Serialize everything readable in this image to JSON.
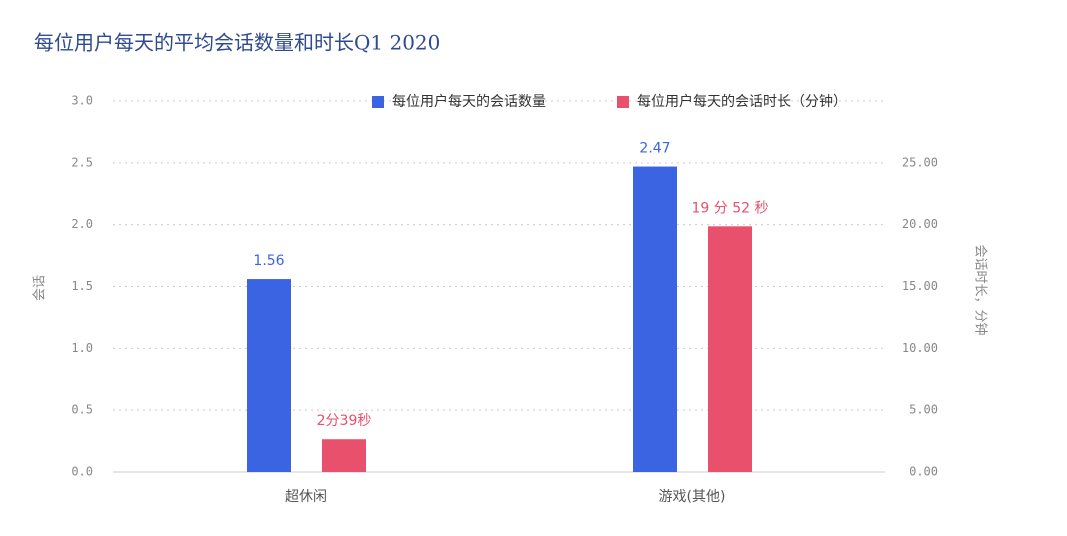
{
  "chart_data": {
    "type": "bar",
    "title": "每位用户每天的平均会话数量和时长Q1 2020",
    "categories": [
      "超休闲",
      "游戏(其他)"
    ],
    "y_label": "会话",
    "y2_label": "会话时长，分钟",
    "series": [
      {
        "name": "每位用户每天的会话数量",
        "color": "#3b64e3",
        "values": [
          1.56,
          2.47
        ]
      },
      {
        "name": "每位用户每天的会话时长（分钟）",
        "color": "#e8506b",
        "axis": "y2",
        "values": [
          2.65,
          19.8667
        ],
        "value_labels": [
          "2分39秒",
          "19 分 52 秒"
        ]
      }
    ],
    "ylim": [
      0,
      3
    ],
    "yticks": [
      {
        "value": 0,
        "label": "0.0"
      },
      0.5,
      {
        "value": 1,
        "label": "1.0"
      },
      1.5,
      {
        "value": 2,
        "label": "2.0"
      },
      2.5,
      {
        "value": 3,
        "label": "3.0"
      }
    ],
    "y2lim": [
      0,
      30
    ],
    "y2ticks": [
      {
        "value": 0,
        "label": "0.00"
      },
      {
        "value": 5,
        "label": "5.00"
      },
      {
        "value": 10,
        "label": "10.00"
      },
      {
        "value": 15,
        "label": "15.00"
      },
      {
        "value": 20,
        "label": "20.00"
      },
      {
        "value": 25,
        "label": "25.00"
      }
    ],
    "grid": true
  }
}
